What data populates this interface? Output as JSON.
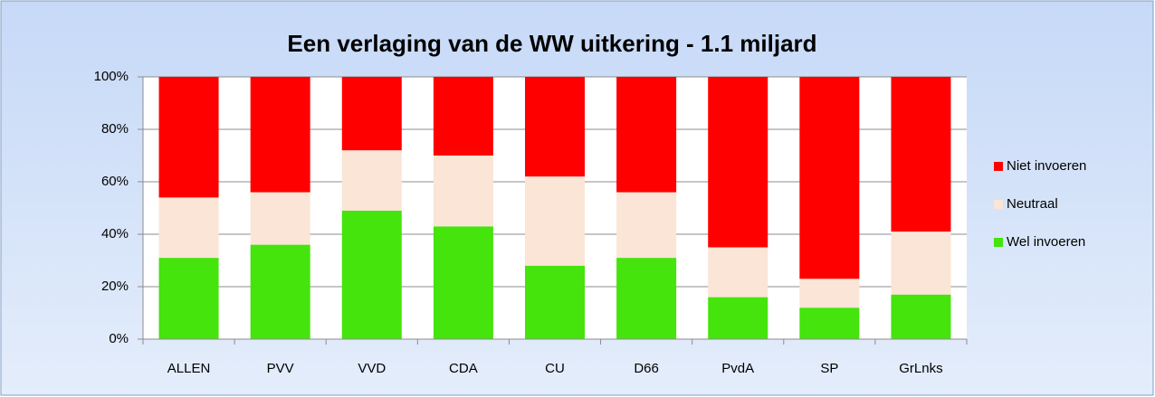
{
  "chart_data": {
    "type": "stacked_bar",
    "title": "Een verlaging van de WW uitkering - 1.1 miljard",
    "categories": [
      "ALLEN",
      "PVV",
      "VVD",
      "CDA",
      "CU",
      "D66",
      "PvdA",
      "SP",
      "GrLnks"
    ],
    "series": [
      {
        "name": "Wel invoeren",
        "color": "#44e40c",
        "values": [
          31,
          36,
          49,
          43,
          28,
          31,
          16,
          12,
          17
        ]
      },
      {
        "name": "Neutraal",
        "color": "#fbe5d6",
        "values": [
          23,
          20,
          23,
          27,
          34,
          25,
          19,
          11,
          24
        ]
      },
      {
        "name": "Niet invoeren",
        "color": "#ff0000",
        "values": [
          46,
          44,
          28,
          30,
          38,
          44,
          65,
          77,
          59
        ]
      }
    ],
    "ylim": [
      0,
      100
    ],
    "yticks": [
      {
        "value": 0,
        "label": "0%"
      },
      {
        "value": 20,
        "label": "20%"
      },
      {
        "value": 40,
        "label": "40%"
      },
      {
        "value": 60,
        "label": "60%"
      },
      {
        "value": 80,
        "label": "80%"
      },
      {
        "value": 100,
        "label": "100%"
      }
    ],
    "grid": true,
    "legend": "right"
  }
}
